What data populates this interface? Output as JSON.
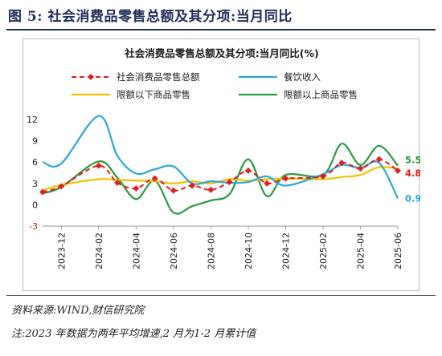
{
  "figure": {
    "title": "图 5:  社会消费品零售总额及其分项:当月同比",
    "source": "资料来源:WIND,财信研究院",
    "note": "注:2023 年数据为两年平均增速,2 月为1-2 月累计值"
  },
  "chart_data": {
    "type": "line",
    "title": "社会消费品零售总额及其分项:当月同比(%)",
    "xlabel": "",
    "ylabel": "",
    "ylim": [
      -3,
      12
    ],
    "yticks": [
      -3,
      0,
      3,
      6,
      9,
      12
    ],
    "x": [
      "2023-11",
      "2023-12",
      "2024-01",
      "2024-02",
      "2024-03",
      "2024-04",
      "2024-05",
      "2024-06",
      "2024-07",
      "2024-08",
      "2024-09",
      "2024-10",
      "2024-11",
      "2024-12",
      "2025-01",
      "2025-02",
      "2025-03",
      "2025-04",
      "2025-05",
      "2025-06"
    ],
    "xtick_labels": [
      "2023-12",
      "2024-02",
      "2024-04",
      "2024-06",
      "2024-08",
      "2024-10",
      "2024-12",
      "2025-02",
      "2025-04",
      "2025-06"
    ],
    "legend": [
      {
        "name": "社会消费品零售总额",
        "color": "#e02020",
        "style": "dashed-diamond"
      },
      {
        "name": "餐饮收入",
        "color": "#2aa8d8",
        "style": "solid"
      },
      {
        "name": "限额以下商品零售",
        "color": "#f2c200",
        "style": "solid"
      },
      {
        "name": "限额以上商品零售",
        "color": "#2a9a3f",
        "style": "solid"
      }
    ],
    "series": [
      {
        "name": "社会消费品零售总额",
        "color": "#e02020",
        "values": [
          1.8,
          2.6,
          null,
          5.5,
          3.1,
          2.3,
          3.7,
          2.0,
          2.7,
          2.1,
          3.2,
          4.8,
          3.0,
          3.7,
          null,
          4.0,
          5.9,
          5.1,
          6.4,
          4.8
        ]
      },
      {
        "name": "餐饮收入",
        "color": "#2aa8d8",
        "values": [
          6.0,
          5.8,
          null,
          12.5,
          6.9,
          4.4,
          5.0,
          5.4,
          3.0,
          3.3,
          3.1,
          3.2,
          4.0,
          2.7,
          null,
          4.3,
          5.6,
          5.2,
          5.9,
          0.9
        ]
      },
      {
        "name": "限额以下商品零售",
        "color": "#f2c200",
        "values": [
          2.0,
          2.8,
          null,
          3.6,
          3.5,
          3.4,
          3.3,
          3.0,
          3.3,
          3.0,
          3.6,
          3.4,
          3.6,
          3.7,
          null,
          3.6,
          3.9,
          4.2,
          5.3,
          5.1
        ]
      },
      {
        "name": "限额以上商品零售",
        "color": "#2a9a3f",
        "values": [
          1.6,
          2.5,
          null,
          6.1,
          3.8,
          0.8,
          3.4,
          -1.1,
          -0.2,
          0.6,
          1.5,
          6.4,
          1.2,
          4.2,
          null,
          4.2,
          8.6,
          5.6,
          8.3,
          5.5
        ]
      }
    ],
    "end_labels": [
      {
        "text": "5.5",
        "color": "#2a9a3f",
        "value": 5.5
      },
      {
        "text": "4.8",
        "color": "#e02020",
        "value": 4.8
      },
      {
        "text": "0.9",
        "color": "#2aa8d8",
        "value": 0.9
      }
    ],
    "grid": false,
    "legend_position": "top"
  }
}
